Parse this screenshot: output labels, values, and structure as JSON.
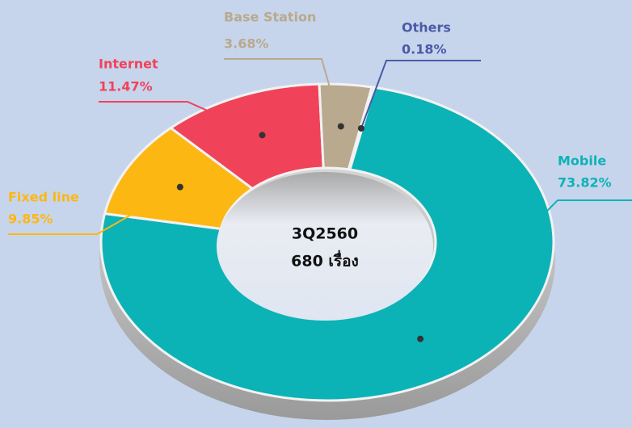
{
  "chart_data": {
    "type": "donut",
    "categories": [
      "Mobile",
      "Fixed line",
      "Internet",
      "Base Station",
      "Others"
    ],
    "values": [
      73.82,
      9.85,
      11.47,
      3.68,
      0.18
    ],
    "value_labels": [
      "73.82%",
      "9.85%",
      "11.47%",
      "3.68%",
      "0.18%"
    ],
    "colors": [
      "#0bb3b6",
      "#fdb713",
      "#f0435a",
      "#b8a98f",
      "#4a5aa8"
    ],
    "center_label": [
      "3Q2560",
      "680 เรื่อง"
    ]
  }
}
